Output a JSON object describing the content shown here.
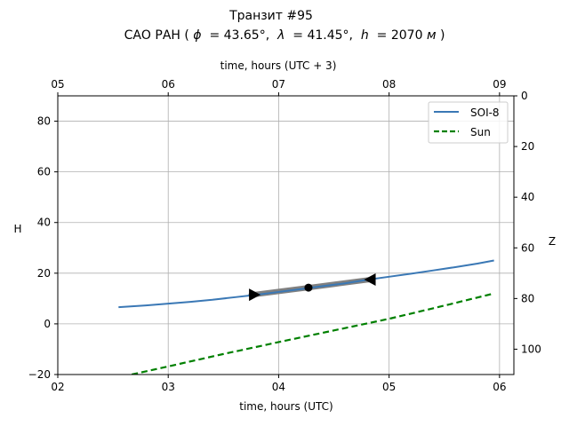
{
  "chart_data": {
    "type": "line",
    "title": {
      "line1": "Транзит #95",
      "line2_prefix": "САО РАН (",
      "phi_sym": "ϕ",
      "phi_eq": " = 43.65°, ",
      "lambda_sym": "λ",
      "lambda_eq": " = 41.45°, ",
      "h_sym": "h",
      "h_eq": " = 2070",
      "h_unit": "м",
      "line2_suffix": ")"
    },
    "xlabel": "time, hours (UTC)",
    "xlabel_top": "time, hours (UTC + 3)",
    "ylabel": "H",
    "ylabel_right": "Z",
    "xlim": [
      2.0,
      6.13
    ],
    "ylim": [
      -20,
      90
    ],
    "zlim": [
      110,
      0
    ],
    "x_ticks": [
      {
        "value": 2,
        "label": "02"
      },
      {
        "value": 3,
        "label": "03"
      },
      {
        "value": 4,
        "label": "04"
      },
      {
        "value": 5,
        "label": "05"
      },
      {
        "value": 6,
        "label": "06"
      }
    ],
    "x_top_ticks": [
      {
        "value": 2,
        "label": "05"
      },
      {
        "value": 3,
        "label": "06"
      },
      {
        "value": 4,
        "label": "07"
      },
      {
        "value": 5,
        "label": "08"
      },
      {
        "value": 6,
        "label": "09"
      }
    ],
    "y_ticks": [
      {
        "value": -20,
        "label": "−20"
      },
      {
        "value": 0,
        "label": "0"
      },
      {
        "value": 20,
        "label": "20"
      },
      {
        "value": 40,
        "label": "40"
      },
      {
        "value": 60,
        "label": "60"
      },
      {
        "value": 80,
        "label": "80"
      }
    ],
    "z_ticks": [
      {
        "value": 0,
        "label": "0"
      },
      {
        "value": 20,
        "label": "20"
      },
      {
        "value": 40,
        "label": "40"
      },
      {
        "value": 60,
        "label": "60"
      },
      {
        "value": 80,
        "label": "80"
      },
      {
        "value": 100,
        "label": "100"
      }
    ],
    "grid": true,
    "legend_position": "top-right",
    "series": [
      {
        "name": "SOI-8",
        "style": "solid",
        "color": "#3a78b5",
        "x": [
          2.55,
          2.8,
          3.0,
          3.2,
          3.4,
          3.6,
          3.8,
          4.0,
          4.2,
          4.4,
          4.6,
          4.8,
          5.0,
          5.2,
          5.4,
          5.6,
          5.8,
          5.95
        ],
        "y": [
          6.6,
          7.3,
          8.0,
          8.7,
          9.5,
          10.5,
          11.5,
          12.6,
          13.7,
          14.9,
          16.0,
          17.4,
          18.6,
          19.8,
          21.1,
          22.4,
          23.8,
          25.0
        ]
      },
      {
        "name": "Sun",
        "style": "dashed",
        "color": "#008000",
        "x": [
          2.67,
          3.0,
          3.5,
          4.0,
          4.5,
          5.0,
          5.5,
          5.95
        ],
        "y": [
          -20.0,
          -16.8,
          -11.9,
          -7.2,
          -2.6,
          2.0,
          7.2,
          12.0
        ]
      }
    ],
    "transit_segment": {
      "name": "transit",
      "color": "#808080",
      "x": [
        3.75,
        4.0,
        4.27,
        4.5,
        4.85
      ],
      "y": [
        11.4,
        12.8,
        14.3,
        15.6,
        17.6
      ]
    },
    "markers": [
      {
        "name": "transit-start-marker",
        "shape": "triangle-right",
        "x": 3.78,
        "y": 11.5
      },
      {
        "name": "transit-mid-marker",
        "shape": "circle",
        "x": 4.27,
        "y": 14.3
      },
      {
        "name": "transit-end-marker",
        "shape": "triangle-left",
        "x": 4.83,
        "y": 17.5
      }
    ]
  }
}
